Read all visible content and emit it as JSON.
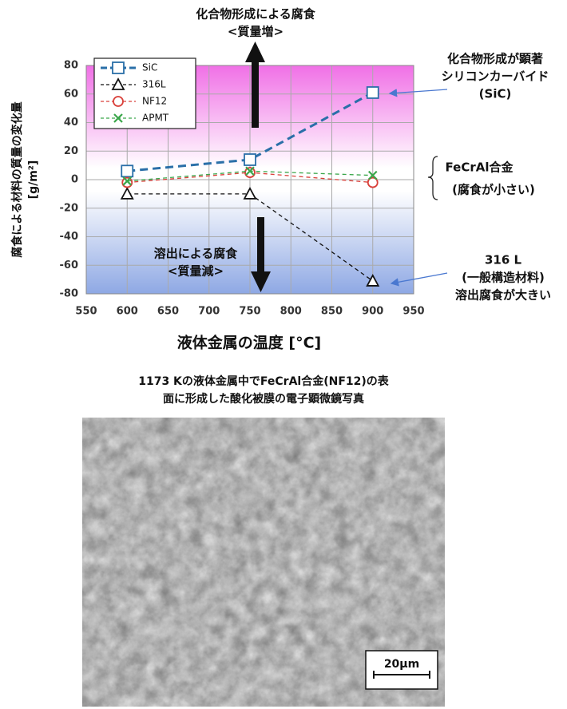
{
  "chart_data": {
    "type": "line",
    "x": [
      600,
      750,
      900
    ],
    "series": [
      {
        "name": "SiC",
        "color": "#2a6fa8",
        "marker": "square",
        "width": 3,
        "values": [
          6,
          14,
          61
        ]
      },
      {
        "name": "316L",
        "color": "#111111",
        "marker": "triangle",
        "width": 1.3,
        "values": [
          -10,
          -10,
          -71
        ]
      },
      {
        "name": "NF12",
        "color": "#d9403a",
        "marker": "circle",
        "width": 1.3,
        "values": [
          -2,
          5,
          -2
        ]
      },
      {
        "name": "APMT",
        "color": "#3aa64a",
        "marker": "x",
        "width": 1.3,
        "values": [
          -1,
          6,
          3
        ]
      }
    ],
    "xlim": [
      550,
      950
    ],
    "xticks": [
      550,
      600,
      650,
      700,
      750,
      800,
      850,
      900,
      950
    ],
    "ylim": [
      -80,
      80
    ],
    "yticks": [
      -80,
      -60,
      -40,
      -20,
      0,
      20,
      40,
      60,
      80
    ],
    "grid": true,
    "x_label": "液体金属の温度 [°C]",
    "y_label": [
      "腐食による材料の質量の変化量",
      "[g/m²]"
    ],
    "annotations": [
      {
        "lines": [
          "化合物形成による腐食",
          "<質量増>"
        ]
      },
      {
        "lines": [
          "溶出による腐食",
          "<質量減>"
        ]
      },
      {
        "lines": [
          "化合物形成が顕著",
          "シリコンカーバイド",
          "(SiC)"
        ]
      },
      {
        "lines": [
          "FeCrAl合金",
          "(腐食が小さい)"
        ],
        "color": "#e0409a"
      },
      {
        "lines": [
          "316 L",
          "(一般構造材料)",
          "溶出腐食が大きい"
        ]
      }
    ]
  },
  "figure": {
    "caption": [
      "1173 Kの液体金属中でFeCrAl合金(NF12)の表",
      "面に形成した酸化被膜の電子顕微鏡写真"
    ],
    "scale_bar": "20μm"
  }
}
